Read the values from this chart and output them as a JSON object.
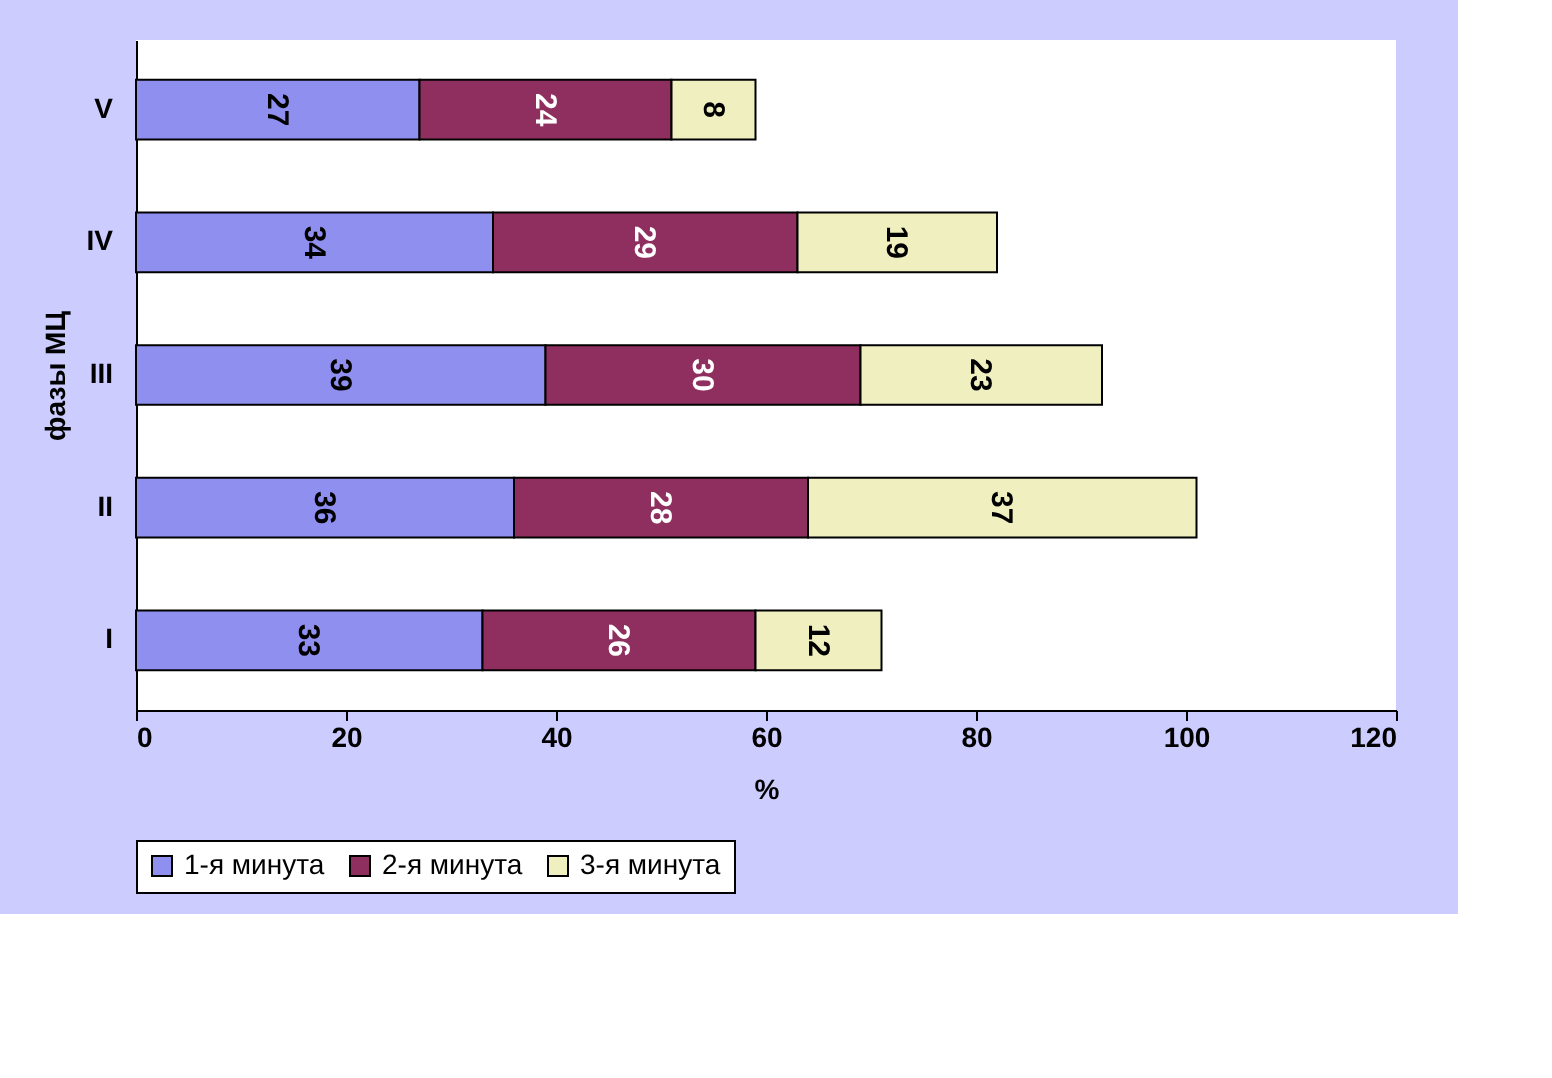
{
  "chart_data": {
    "type": "bar",
    "orientation": "horizontal",
    "stacked": true,
    "data_labels": true,
    "categories": [
      "V",
      "IV",
      "III",
      "II",
      "I"
    ],
    "series": [
      {
        "name": "1-я минута",
        "color": "#8f8fef",
        "values": [
          27,
          34,
          39,
          36,
          33
        ]
      },
      {
        "name": "2-я минута",
        "color": "#8f2f5f",
        "values": [
          24,
          29,
          30,
          28,
          26
        ]
      },
      {
        "name": "3-я минута",
        "color": "#efefbf",
        "values": [
          8,
          19,
          23,
          37,
          12
        ]
      }
    ],
    "xlabel": "%",
    "ylabel": "фазы МЦ",
    "xlim": [
      0,
      120
    ],
    "xticks": [
      0,
      20,
      40,
      60,
      80,
      100,
      120
    ],
    "grid": false,
    "legend": "bottom"
  }
}
